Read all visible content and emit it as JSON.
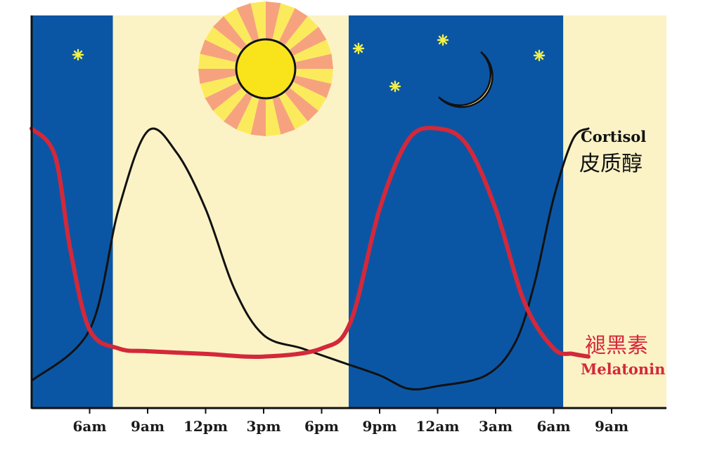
{
  "chart_data": {
    "type": "line",
    "x_ticks": [
      "6am",
      "9am",
      "12pm",
      "3pm",
      "6pm",
      "9pm",
      "12am",
      "3am",
      "6am",
      "9am"
    ],
    "series": [
      {
        "name": "Cortisol",
        "name_zh": "皮质醇",
        "color": "#111111",
        "points": [
          {
            "t": 3.0,
            "v": 6
          },
          {
            "t": 6.0,
            "v": 25
          },
          {
            "t": 7.5,
            "v": 70
          },
          {
            "t": 9.0,
            "v": 99
          },
          {
            "t": 10.5,
            "v": 91
          },
          {
            "t": 12.0,
            "v": 70
          },
          {
            "t": 13.5,
            "v": 40
          },
          {
            "t": 15.0,
            "v": 23
          },
          {
            "t": 17.0,
            "v": 18
          },
          {
            "t": 19.0,
            "v": 13
          },
          {
            "t": 21.0,
            "v": 8
          },
          {
            "t": 22.5,
            "v": 3
          },
          {
            "t": 24.0,
            "v": 4
          },
          {
            "t": 26.5,
            "v": 8
          },
          {
            "t": 28.0,
            "v": 20
          },
          {
            "t": 29.0,
            "v": 42
          },
          {
            "t": 30.0,
            "v": 74
          },
          {
            "t": 31.0,
            "v": 96
          },
          {
            "t": 31.8,
            "v": 100
          }
        ]
      },
      {
        "name": "Melatonin",
        "name_zh": "褪黑素",
        "color": "#d4283a",
        "points": [
          {
            "t": 3.0,
            "v": 100
          },
          {
            "t": 4.2,
            "v": 90
          },
          {
            "t": 5.0,
            "v": 55
          },
          {
            "t": 6.0,
            "v": 25
          },
          {
            "t": 7.5,
            "v": 18
          },
          {
            "t": 9.0,
            "v": 17
          },
          {
            "t": 12.0,
            "v": 16
          },
          {
            "t": 15.0,
            "v": 15
          },
          {
            "t": 18.0,
            "v": 18
          },
          {
            "t": 19.5,
            "v": 28
          },
          {
            "t": 21.0,
            "v": 70
          },
          {
            "t": 22.5,
            "v": 96
          },
          {
            "t": 24.0,
            "v": 100
          },
          {
            "t": 25.5,
            "v": 94
          },
          {
            "t": 27.0,
            "v": 70
          },
          {
            "t": 28.5,
            "v": 35
          },
          {
            "t": 30.0,
            "v": 18
          },
          {
            "t": 31.0,
            "v": 16
          },
          {
            "t": 31.8,
            "v": 15
          }
        ]
      }
    ],
    "bands": [
      {
        "from": 3.0,
        "to": 7.2,
        "phase": "night"
      },
      {
        "from": 7.2,
        "to": 19.4,
        "phase": "day"
      },
      {
        "from": 19.4,
        "to": 30.5,
        "phase": "night"
      },
      {
        "from": 30.5,
        "to": 36.0,
        "phase": "day"
      }
    ],
    "colors": {
      "night": "#0b56a4",
      "day": "#fbf3c6",
      "sun_core": "#f9e31a",
      "sun_ray_a": "#f7a27f",
      "sun_ray_b": "#fbeb5c",
      "moon": "#fbeea3",
      "star": "#f1f04a"
    },
    "grid": false,
    "legend": "right-of-lines"
  }
}
